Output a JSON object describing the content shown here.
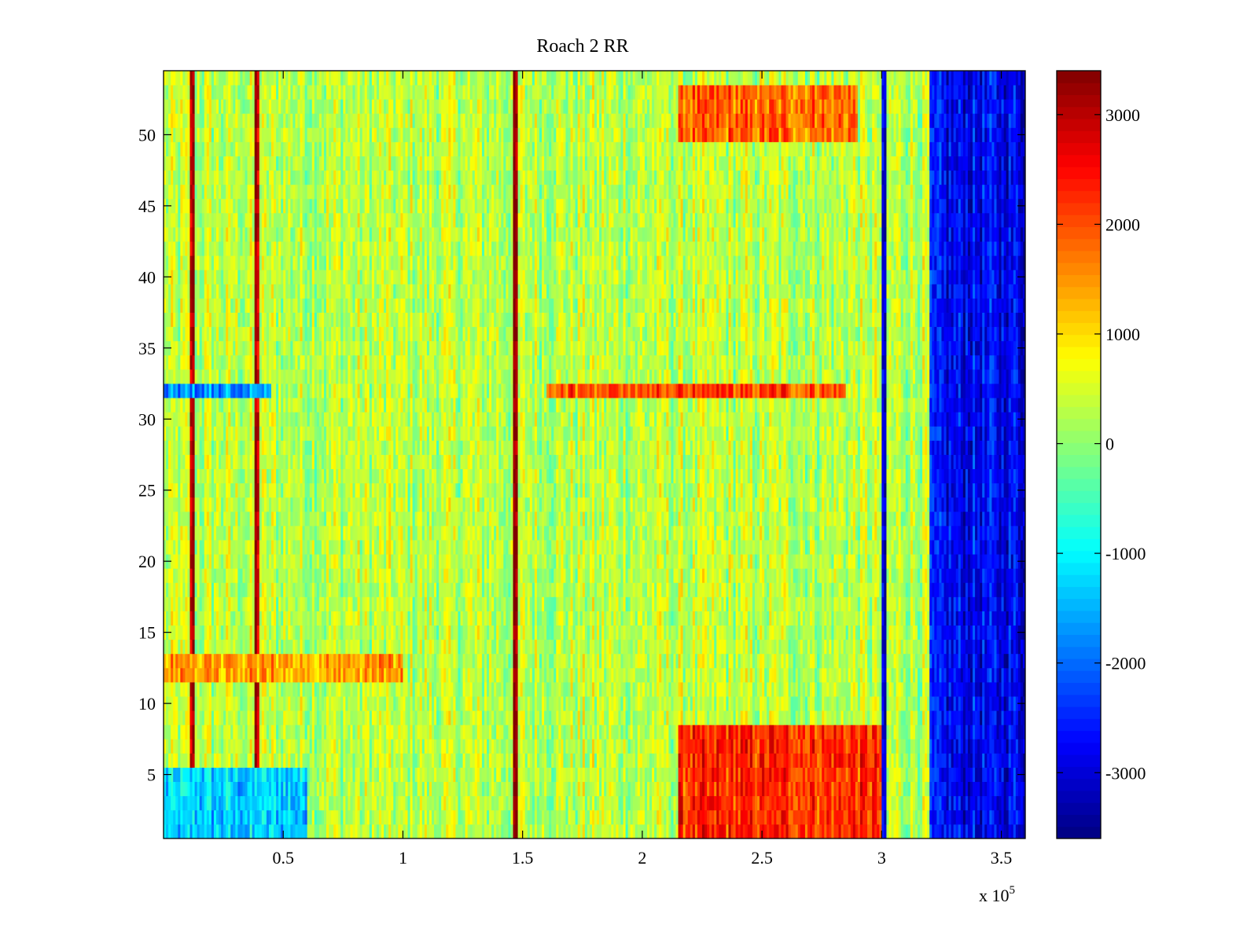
{
  "chart_data": {
    "type": "heatmap",
    "title": "Roach 2 RR",
    "xlabel": "",
    "ylabel": "",
    "x_multiplier": "x 10",
    "x_exponent": "5",
    "xlim": [
      0,
      3.6
    ],
    "ylim": [
      0.5,
      54.5
    ],
    "x_ticks": [
      0.5,
      1,
      1.5,
      2,
      2.5,
      3,
      3.5
    ],
    "x_tick_labels": [
      "0.5",
      "1",
      "1.5",
      "2",
      "2.5",
      "3",
      "3.5"
    ],
    "y_ticks": [
      5,
      10,
      15,
      20,
      25,
      30,
      35,
      40,
      45,
      50
    ],
    "y_tick_labels": [
      "5",
      "10",
      "15",
      "20",
      "25",
      "30",
      "35",
      "40",
      "45",
      "50"
    ],
    "rows": 54,
    "columns": 360,
    "colormap": "jet",
    "clim": [
      -3600,
      3400
    ],
    "colorbar_ticks": [
      3000,
      2000,
      1000,
      0,
      -1000,
      -2000,
      -3000
    ],
    "colorbar_tick_labels": [
      "3000",
      "2000",
      "1000",
      "0",
      "-1000",
      "-2000",
      "-3000"
    ],
    "approx_regions": [
      {
        "description": "background",
        "x_range": [
          0,
          3.2
        ],
        "rows": [
          1,
          54
        ],
        "value": 300
      },
      {
        "description": "bright column 1",
        "x_center": 0.12,
        "value": 3000
      },
      {
        "description": "bright column 2",
        "x_center": 0.39,
        "value": 3000
      },
      {
        "description": "bright column 3",
        "x_center": 1.47,
        "value": 3000
      },
      {
        "description": "high band right",
        "x_range": [
          2.15,
          3.0
        ],
        "rows": [
          1,
          8
        ],
        "value": 2200
      },
      {
        "description": "high band top",
        "x_range": [
          2.15,
          2.9
        ],
        "rows": [
          50,
          53
        ],
        "value": 1800
      },
      {
        "description": "low row 32 left",
        "x_range": [
          0,
          0.45
        ],
        "rows": [
          32,
          32
        ],
        "value": -1800
      },
      {
        "description": "high row 32 right",
        "x_range": [
          1.6,
          2.85
        ],
        "rows": [
          32,
          32
        ],
        "value": 2000
      },
      {
        "description": "low rows 1-5 left",
        "x_range": [
          0,
          0.6
        ],
        "rows": [
          1,
          5
        ],
        "value": -1300
      },
      {
        "description": "high rows 12-13 left",
        "x_range": [
          0,
          1.0
        ],
        "rows": [
          12,
          13
        ],
        "value": 1400
      },
      {
        "description": "dark column",
        "x_range": [
          3.0,
          3.02
        ],
        "rows": [
          1,
          54
        ],
        "value": -3300
      },
      {
        "description": "dark block right",
        "x_range": [
          3.2,
          3.6
        ],
        "rows": [
          1,
          54
        ],
        "value": -2800
      }
    ]
  }
}
